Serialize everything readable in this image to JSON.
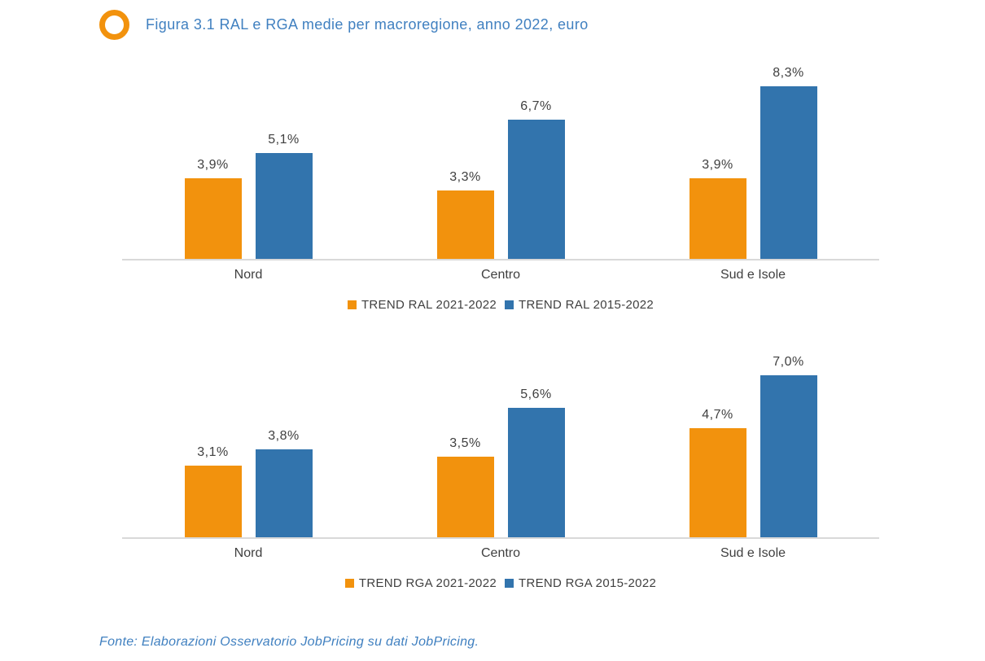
{
  "header": {
    "title": "Figura 3.1 RAL e RGA medie per macroregione, anno 2022, euro"
  },
  "colors": {
    "orange": "#F2920D",
    "blue": "#3274AD",
    "axis_gray": "#D9D9D9",
    "label_gray": "#404040",
    "title_blue": "#4080C0"
  },
  "footer": {
    "source": "Fonte: Elaborazioni Osservatorio JobPricing su dati JobPricing."
  },
  "chart_data": [
    {
      "id": "trend-ral",
      "type": "bar",
      "title": "",
      "categories": [
        "Nord",
        "Centro",
        "Sud e Isole"
      ],
      "series": [
        {
          "name": "TREND RAL 2021-2022",
          "color": "#F2920D",
          "values": [
            3.9,
            3.3,
            3.9
          ],
          "labels": [
            "3,9%",
            "3,3%",
            "3,9%"
          ]
        },
        {
          "name": "TREND RAL 2015-2022",
          "color": "#3274AD",
          "values": [
            5.1,
            6.7,
            8.3
          ],
          "labels": [
            "5,1%",
            "6,7%",
            "8,3%"
          ]
        }
      ],
      "unit": "%",
      "xlabel": "",
      "ylabel": "",
      "ylim": [
        0,
        9.8
      ],
      "grid": false,
      "legend_position": "bottom"
    },
    {
      "id": "trend-rga",
      "type": "bar",
      "title": "",
      "categories": [
        "Nord",
        "Centro",
        "Sud e Isole"
      ],
      "series": [
        {
          "name": "TREND RGA 2021-2022",
          "color": "#F2920D",
          "values": [
            3.1,
            3.5,
            4.7
          ],
          "labels": [
            "3,1%",
            "3,5%",
            "4,7%"
          ]
        },
        {
          "name": "TREND RGA 2015-2022",
          "color": "#3274AD",
          "values": [
            3.8,
            5.6,
            7.0
          ],
          "labels": [
            "3,8%",
            "5,6%",
            "7,0%"
          ]
        }
      ],
      "unit": "%",
      "xlabel": "",
      "ylabel": "",
      "ylim": [
        0,
        8.8
      ],
      "grid": false,
      "legend_position": "bottom"
    }
  ]
}
